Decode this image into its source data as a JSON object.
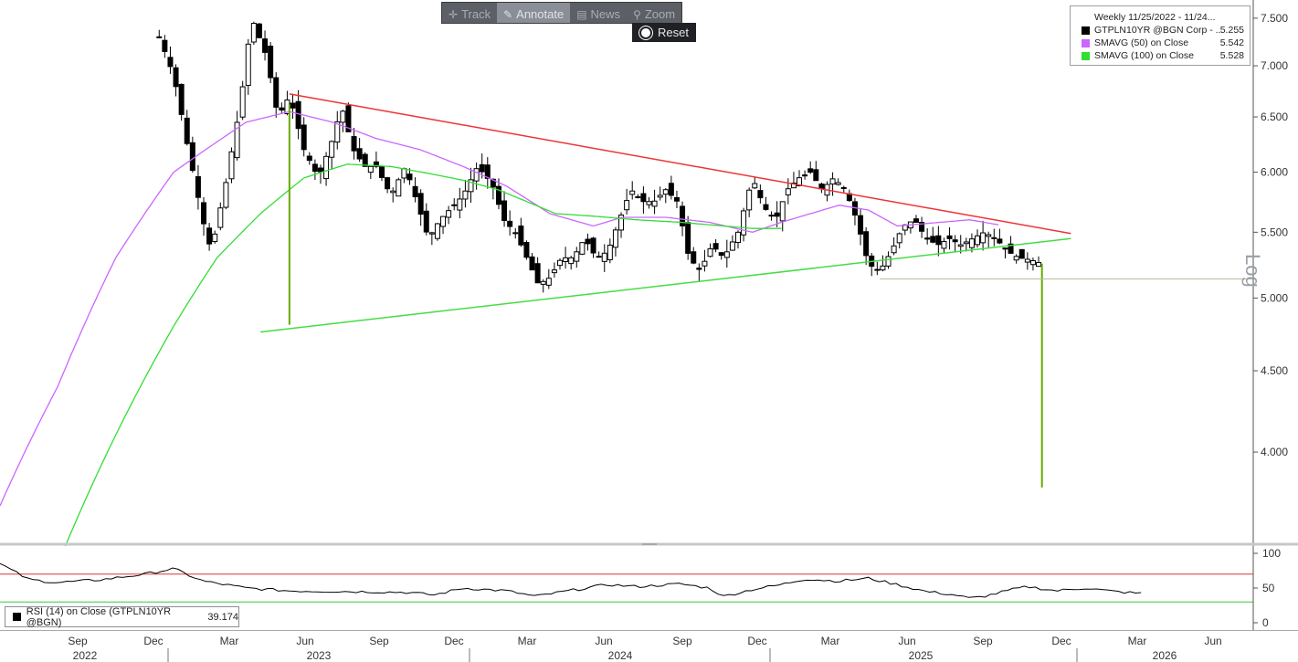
{
  "toolbar": {
    "track": "Track",
    "annotate": "Annotate",
    "news": "News",
    "zoom": "Zoom",
    "reset": "Reset"
  },
  "legend": {
    "title": "Weekly 11/25/2022 - 11/24...",
    "items": [
      {
        "name": "GTPLN10YR @BGN Corp - ...",
        "value": "5.255",
        "color": "#000000"
      },
      {
        "name": "SMAVG (50)  on Close",
        "value": "5.542",
        "color": "#cc66ff"
      },
      {
        "name": "SMAVG (100)  on Close",
        "value": "5.528",
        "color": "#33dd33"
      }
    ]
  },
  "rsi_legend": {
    "label": "RSI (14)  on Close (GTPLN10YR @BGN)",
    "value": "39.174"
  },
  "scale_label": "Log",
  "chart_data": {
    "type": "line",
    "y_scale": "log",
    "y_ticks": [
      "7.500",
      "7.000",
      "6.500",
      "6.000",
      "5.500",
      "5.000",
      "4.500",
      "4.000"
    ],
    "y_tick_values": [
      7.5,
      7.0,
      6.5,
      6.0,
      5.5,
      5.0,
      4.5,
      4.0
    ],
    "ylim": [
      3.5,
      7.7
    ],
    "x_months": [
      "Sep",
      "Dec",
      "Mar",
      "Jun",
      "Sep",
      "Dec",
      "Mar",
      "Jun",
      "Sep",
      "Dec",
      "Mar",
      "Jun",
      "Sep",
      "Dec",
      "Mar",
      "Jun"
    ],
    "x_years": [
      "2022",
      "2023",
      "2024",
      "2025",
      "2026"
    ],
    "price_anchors": [
      [
        2022.55,
        7.3
      ],
      [
        2022.6,
        6.9
      ],
      [
        2022.65,
        6.2
      ],
      [
        2022.7,
        5.6
      ],
      [
        2022.73,
        5.35
      ],
      [
        2022.78,
        5.9
      ],
      [
        2022.83,
        6.6
      ],
      [
        2022.87,
        7.5
      ],
      [
        2022.92,
        7.1
      ],
      [
        2022.96,
        6.5
      ],
      [
        2023.0,
        6.7
      ],
      [
        2023.05,
        6.2
      ],
      [
        2023.1,
        5.95
      ],
      [
        2023.15,
        6.3
      ],
      [
        2023.18,
        6.6
      ],
      [
        2023.22,
        6.2
      ],
      [
        2023.26,
        6.05
      ],
      [
        2023.3,
        6.05
      ],
      [
        2023.35,
        5.8
      ],
      [
        2023.4,
        6.05
      ],
      [
        2023.44,
        5.75
      ],
      [
        2023.48,
        5.45
      ],
      [
        2023.52,
        5.6
      ],
      [
        2023.56,
        5.7
      ],
      [
        2023.6,
        5.8
      ],
      [
        2023.65,
        6.05
      ],
      [
        2023.7,
        5.9
      ],
      [
        2023.74,
        5.6
      ],
      [
        2023.78,
        5.5
      ],
      [
        2023.82,
        5.3
      ],
      [
        2023.86,
        5.1
      ],
      [
        2023.9,
        5.15
      ],
      [
        2023.94,
        5.3
      ],
      [
        2023.98,
        5.3
      ],
      [
        2024.02,
        5.45
      ],
      [
        2024.06,
        5.3
      ],
      [
        2024.1,
        5.35
      ],
      [
        2024.14,
        5.6
      ],
      [
        2024.18,
        5.85
      ],
      [
        2024.22,
        5.75
      ],
      [
        2024.26,
        5.75
      ],
      [
        2024.3,
        5.85
      ],
      [
        2024.34,
        5.75
      ],
      [
        2024.38,
        5.3
      ],
      [
        2024.42,
        5.2
      ],
      [
        2024.46,
        5.4
      ],
      [
        2024.5,
        5.3
      ],
      [
        2024.55,
        5.5
      ],
      [
        2024.6,
        5.95
      ],
      [
        2024.64,
        5.7
      ],
      [
        2024.68,
        5.6
      ],
      [
        2024.72,
        5.85
      ],
      [
        2024.76,
        5.95
      ],
      [
        2024.8,
        6.0
      ],
      [
        2024.84,
        5.85
      ],
      [
        2024.88,
        5.95
      ],
      [
        2024.92,
        5.85
      ],
      [
        2024.96,
        5.6
      ],
      [
        2025.0,
        5.25
      ],
      [
        2025.04,
        5.2
      ],
      [
        2025.08,
        5.35
      ],
      [
        2025.12,
        5.55
      ],
      [
        2025.16,
        5.6
      ],
      [
        2025.2,
        5.45
      ],
      [
        2025.24,
        5.4
      ],
      [
        2025.28,
        5.45
      ],
      [
        2025.32,
        5.4
      ],
      [
        2025.36,
        5.45
      ],
      [
        2025.4,
        5.5
      ],
      [
        2025.44,
        5.45
      ],
      [
        2025.48,
        5.35
      ],
      [
        2025.52,
        5.3
      ],
      [
        2025.56,
        5.285
      ],
      [
        2025.6,
        5.255
      ]
    ],
    "sma50_anchors": [
      [
        2022.0,
        3.7
      ],
      [
        2022.2,
        4.4
      ],
      [
        2022.4,
        5.3
      ],
      [
        2022.6,
        6.0
      ],
      [
        2022.85,
        6.45
      ],
      [
        2023.0,
        6.55
      ],
      [
        2023.15,
        6.45
      ],
      [
        2023.3,
        6.3
      ],
      [
        2023.45,
        6.2
      ],
      [
        2023.6,
        6.05
      ],
      [
        2023.75,
        5.88
      ],
      [
        2023.9,
        5.65
      ],
      [
        2024.05,
        5.55
      ],
      [
        2024.15,
        5.62
      ],
      [
        2024.3,
        5.62
      ],
      [
        2024.45,
        5.58
      ],
      [
        2024.6,
        5.5
      ],
      [
        2024.7,
        5.58
      ],
      [
        2024.8,
        5.65
      ],
      [
        2024.9,
        5.72
      ],
      [
        2025.0,
        5.68
      ],
      [
        2025.1,
        5.55
      ],
      [
        2025.25,
        5.58
      ],
      [
        2025.35,
        5.6
      ],
      [
        2025.45,
        5.56
      ]
    ],
    "sma100_anchors": [
      [
        2022.2,
        3.4
      ],
      [
        2022.4,
        4.1
      ],
      [
        2022.6,
        4.8
      ],
      [
        2022.75,
        5.3
      ],
      [
        2022.9,
        5.65
      ],
      [
        2023.05,
        5.95
      ],
      [
        2023.2,
        6.07
      ],
      [
        2023.35,
        6.05
      ],
      [
        2023.5,
        5.98
      ],
      [
        2023.6,
        5.93
      ],
      [
        2023.72,
        5.85
      ],
      [
        2023.82,
        5.75
      ],
      [
        2023.92,
        5.65
      ],
      [
        2024.05,
        5.63
      ],
      [
        2024.2,
        5.6
      ],
      [
        2024.35,
        5.58
      ],
      [
        2024.5,
        5.55
      ],
      [
        2024.6,
        5.53
      ],
      [
        2024.7,
        5.53
      ]
    ],
    "upper_trendline": [
      [
        2023.0,
        6.72
      ],
      [
        2025.7,
        5.49
      ]
    ],
    "lower_trendline": [
      [
        2022.9,
        4.76
      ],
      [
        2025.7,
        5.45
      ]
    ],
    "target_lines": [
      {
        "x": 2023.0,
        "from": 6.62,
        "to": 4.81
      },
      {
        "x": 2025.6,
        "from": 5.255,
        "to": 3.8
      }
    ],
    "support_level": 5.14,
    "rsi": {
      "y_ticks": [
        "100",
        "50",
        "0"
      ],
      "y_tick_values": [
        100,
        50,
        0
      ],
      "upper_band": 70,
      "lower_band": 30,
      "anchors": [
        [
          2022.0,
          85
        ],
        [
          2022.1,
          62
        ],
        [
          2022.2,
          58
        ],
        [
          2022.35,
          62
        ],
        [
          2022.5,
          70
        ],
        [
          2022.6,
          78
        ],
        [
          2022.7,
          60
        ],
        [
          2022.85,
          50
        ],
        [
          2023.0,
          46
        ],
        [
          2023.2,
          45
        ],
        [
          2023.4,
          44
        ],
        [
          2023.5,
          40
        ],
        [
          2023.6,
          50
        ],
        [
          2023.75,
          46
        ],
        [
          2023.85,
          38
        ],
        [
          2023.95,
          45
        ],
        [
          2024.1,
          55
        ],
        [
          2024.2,
          52
        ],
        [
          2024.35,
          56
        ],
        [
          2024.45,
          50
        ],
        [
          2024.5,
          38
        ],
        [
          2024.6,
          48
        ],
        [
          2024.7,
          55
        ],
        [
          2024.78,
          63
        ],
        [
          2024.9,
          60
        ],
        [
          2025.0,
          64
        ],
        [
          2025.1,
          55
        ],
        [
          2025.2,
          45
        ],
        [
          2025.3,
          40
        ],
        [
          2025.35,
          35
        ],
        [
          2025.4,
          38
        ],
        [
          2025.5,
          48
        ],
        [
          2025.55,
          52
        ],
        [
          2025.65,
          46
        ],
        [
          2025.75,
          50
        ],
        [
          2025.85,
          45
        ],
        [
          2025.95,
          42
        ]
      ]
    }
  }
}
